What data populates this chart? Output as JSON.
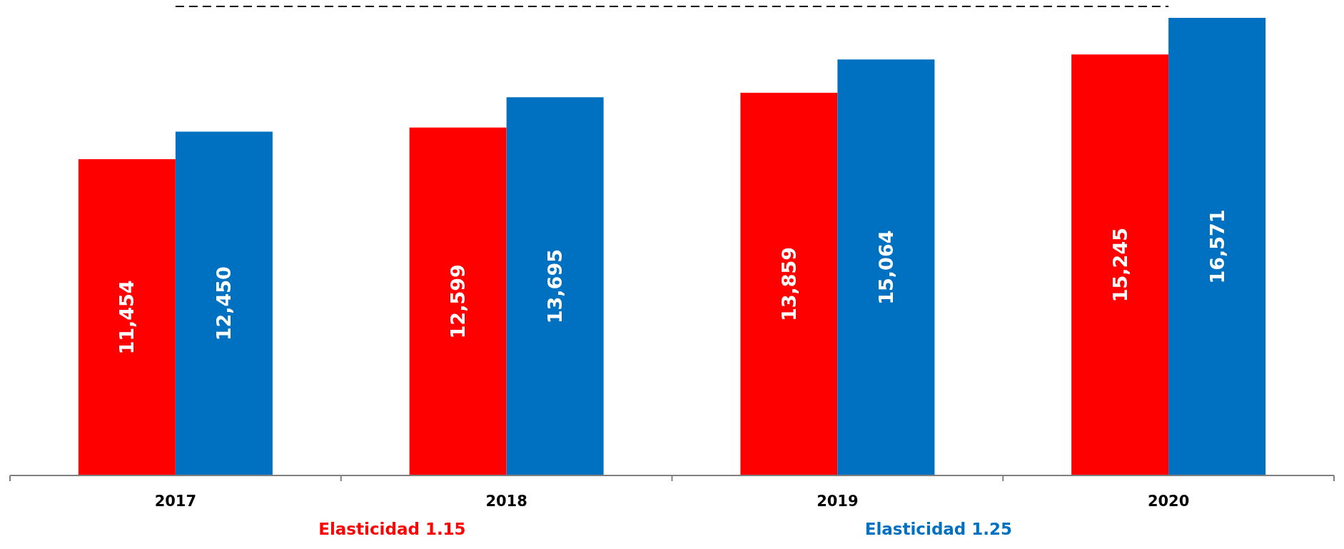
{
  "chart_data": {
    "type": "bar",
    "categories": [
      "2017",
      "2018",
      "2019",
      "2020"
    ],
    "series": [
      {
        "name": "Elasticidad 1.15",
        "color": "#ff0000",
        "values": [
          11454,
          12599,
          13859,
          15245
        ],
        "value_labels": [
          "11,454",
          "12,599",
          "13,859",
          "15,245"
        ]
      },
      {
        "name": "Elasticidad 1.25",
        "color": "#0070c0",
        "values": [
          12450,
          13695,
          15064,
          16571
        ],
        "value_labels": [
          "12,450",
          "13,695",
          "15,064",
          "16,571"
        ]
      }
    ],
    "tick_labels": "x",
    "legend": "bottom",
    "ref_lines": [
      {
        "axis": "y",
        "color": "#000000",
        "line_style": "dashed"
      }
    ]
  }
}
